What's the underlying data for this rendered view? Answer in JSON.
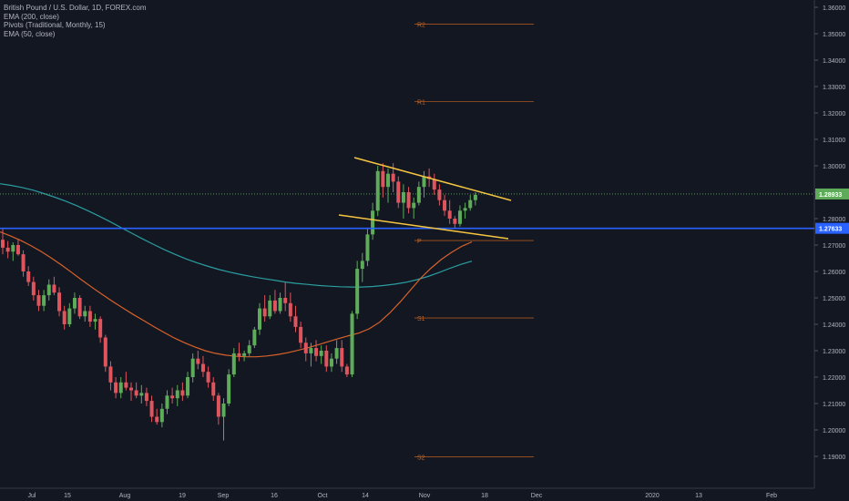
{
  "chart_data": {
    "type": "candlestick",
    "title": "British Pound / U.S. Dollar, 1D, FOREX.com",
    "indicators": [
      "EMA (200, close)",
      "Pivots (Traditional, Monthly, 15)",
      "EMA (50, close)"
    ],
    "x_ticks": [
      "Jul",
      "15",
      "Aug",
      "19",
      "Sep",
      "16",
      "Oct",
      "14",
      "Nov",
      "18",
      "Dec",
      "2020",
      "13",
      "Feb"
    ],
    "y_ticks": [
      "1.36000",
      "1.35000",
      "1.34000",
      "1.33000",
      "1.32000",
      "1.31000",
      "1.30000",
      "1.29000",
      "1.28000",
      "1.27000",
      "1.26000",
      "1.25000",
      "1.24000",
      "1.23000",
      "1.22000",
      "1.21000",
      "1.20000",
      "1.19000"
    ],
    "ylim": [
      1.1838,
      1.3623
    ],
    "last_price": "1.28933",
    "horizontal_level": "1.27633",
    "pivots": [
      {
        "label": "R2",
        "value": 1.3536
      },
      {
        "label": "R1",
        "value": 1.3243
      },
      {
        "label": "P",
        "value": 1.2717
      },
      {
        "label": "S1",
        "value": 1.2424
      },
      {
        "label": "S2",
        "value": 1.1898
      }
    ],
    "candles": [
      [
        1.272,
        1.276,
        1.2665,
        1.269
      ],
      [
        1.269,
        1.2715,
        1.265,
        1.2675
      ],
      [
        1.2675,
        1.271,
        1.264,
        1.27
      ],
      [
        1.27,
        1.272,
        1.266,
        1.2665
      ],
      [
        1.2665,
        1.268,
        1.258,
        1.26
      ],
      [
        1.26,
        1.262,
        1.2545,
        1.256
      ],
      [
        1.256,
        1.258,
        1.249,
        1.251
      ],
      [
        1.251,
        1.253,
        1.245,
        1.247
      ],
      [
        1.247,
        1.253,
        1.245,
        1.251
      ],
      [
        1.251,
        1.257,
        1.249,
        1.255
      ],
      [
        1.255,
        1.258,
        1.251,
        1.252
      ],
      [
        1.252,
        1.254,
        1.243,
        1.245
      ],
      [
        1.245,
        1.247,
        1.238,
        1.24
      ],
      [
        1.24,
        1.248,
        1.239,
        1.246
      ],
      [
        1.246,
        1.252,
        1.244,
        1.25
      ],
      [
        1.25,
        1.251,
        1.242,
        1.243
      ],
      [
        1.243,
        1.247,
        1.241,
        1.245
      ],
      [
        1.245,
        1.247,
        1.239,
        1.241
      ],
      [
        1.241,
        1.244,
        1.238,
        1.242
      ],
      [
        1.242,
        1.243,
        1.233,
        1.235
      ],
      [
        1.235,
        1.236,
        1.222,
        1.224
      ],
      [
        1.224,
        1.226,
        1.215,
        1.218
      ],
      [
        1.218,
        1.22,
        1.212,
        1.214
      ],
      [
        1.214,
        1.22,
        1.212,
        1.218
      ],
      [
        1.218,
        1.222,
        1.215,
        1.216
      ],
      [
        1.216,
        1.218,
        1.211,
        1.215
      ],
      [
        1.215,
        1.218,
        1.212,
        1.213
      ],
      [
        1.213,
        1.217,
        1.21,
        1.214
      ],
      [
        1.214,
        1.216,
        1.209,
        1.211
      ],
      [
        1.211,
        1.213,
        1.203,
        1.205
      ],
      [
        1.205,
        1.208,
        1.202,
        1.203
      ],
      [
        1.203,
        1.21,
        1.201,
        1.208
      ],
      [
        1.208,
        1.215,
        1.206,
        1.213
      ],
      [
        1.213,
        1.216,
        1.21,
        1.212
      ],
      [
        1.212,
        1.217,
        1.209,
        1.215
      ],
      [
        1.215,
        1.218,
        1.211,
        1.213
      ],
      [
        1.213,
        1.222,
        1.212,
        1.22
      ],
      [
        1.22,
        1.229,
        1.218,
        1.227
      ],
      [
        1.227,
        1.23,
        1.223,
        1.225
      ],
      [
        1.225,
        1.228,
        1.22,
        1.222
      ],
      [
        1.222,
        1.224,
        1.216,
        1.218
      ],
      [
        1.218,
        1.22,
        1.211,
        1.213
      ],
      [
        1.213,
        1.214,
        1.202,
        1.205
      ],
      [
        1.205,
        1.212,
        1.196,
        1.21
      ],
      [
        1.21,
        1.223,
        1.209,
        1.221
      ],
      [
        1.221,
        1.231,
        1.22,
        1.229
      ],
      [
        1.229,
        1.233,
        1.226,
        1.228
      ],
      [
        1.228,
        1.23,
        1.226,
        1.229
      ],
      [
        1.229,
        1.234,
        1.228,
        1.232
      ],
      [
        1.232,
        1.239,
        1.231,
        1.238
      ],
      [
        1.238,
        1.248,
        1.236,
        1.246
      ],
      [
        1.246,
        1.251,
        1.241,
        1.243
      ],
      [
        1.243,
        1.251,
        1.242,
        1.249
      ],
      [
        1.249,
        1.253,
        1.244,
        1.245
      ],
      [
        1.245,
        1.252,
        1.244,
        1.25
      ],
      [
        1.25,
        1.256,
        1.245,
        1.248
      ],
      [
        1.248,
        1.252,
        1.241,
        1.243
      ],
      [
        1.243,
        1.247,
        1.237,
        1.239
      ],
      [
        1.239,
        1.241,
        1.231,
        1.233
      ],
      [
        1.233,
        1.235,
        1.226,
        1.229
      ],
      [
        1.229,
        1.233,
        1.224,
        1.231
      ],
      [
        1.231,
        1.234,
        1.226,
        1.228
      ],
      [
        1.228,
        1.232,
        1.225,
        1.23
      ],
      [
        1.23,
        1.232,
        1.222,
        1.224
      ],
      [
        1.224,
        1.229,
        1.222,
        1.227
      ],
      [
        1.227,
        1.234,
        1.225,
        1.231
      ],
      [
        1.231,
        1.234,
        1.222,
        1.224
      ],
      [
        1.224,
        1.225,
        1.22,
        1.221
      ],
      [
        1.221,
        1.245,
        1.22,
        1.244
      ],
      [
        1.244,
        1.264,
        1.242,
        1.261
      ],
      [
        1.261,
        1.267,
        1.256,
        1.264
      ],
      [
        1.264,
        1.276,
        1.262,
        1.274
      ],
      [
        1.274,
        1.286,
        1.272,
        1.283
      ],
      [
        1.283,
        1.3,
        1.281,
        1.298
      ],
      [
        1.298,
        1.301,
        1.288,
        1.292
      ],
      [
        1.292,
        1.299,
        1.286,
        1.297
      ],
      [
        1.297,
        1.301,
        1.29,
        1.294
      ],
      [
        1.294,
        1.296,
        1.284,
        1.286
      ],
      [
        1.286,
        1.293,
        1.28,
        1.29
      ],
      [
        1.29,
        1.292,
        1.282,
        1.284
      ],
      [
        1.284,
        1.288,
        1.28,
        1.286
      ],
      [
        1.286,
        1.294,
        1.285,
        1.292
      ],
      [
        1.292,
        1.298,
        1.288,
        1.296
      ],
      [
        1.296,
        1.299,
        1.292,
        1.295
      ],
      [
        1.295,
        1.297,
        1.289,
        1.291
      ],
      [
        1.291,
        1.293,
        1.285,
        1.287
      ],
      [
        1.287,
        1.289,
        1.281,
        1.283
      ],
      [
        1.283,
        1.287,
        1.278,
        1.28
      ],
      [
        1.28,
        1.281,
        1.276,
        1.278
      ],
      [
        1.278,
        1.285,
        1.277,
        1.283
      ],
      [
        1.283,
        1.286,
        1.28,
        1.284
      ],
      [
        1.284,
        1.289,
        1.283,
        1.287
      ],
      [
        1.287,
        1.29,
        1.285,
        1.289
      ]
    ],
    "ema200": [
      1.2932,
      1.2926,
      1.2918,
      1.2908,
      1.2895,
      1.2881,
      1.2866,
      1.2849,
      1.283,
      1.281,
      1.2789,
      1.2767,
      1.2745,
      1.2723,
      1.2702,
      1.2682,
      1.2664,
      1.2647,
      1.2632,
      1.2619,
      1.2607,
      1.2597,
      1.2588,
      1.258,
      1.2573,
      1.2567,
      1.256,
      1.2555,
      1.2551,
      1.2547,
      1.2544,
      1.2542,
      1.2541,
      1.2541,
      1.2543,
      1.2547,
      1.2552,
      1.2559,
      1.2569,
      1.2581,
      1.2596,
      1.2612,
      1.2627,
      1.2639
    ],
    "ema50": [
      1.275,
      1.2735,
      1.2718,
      1.2698,
      1.2676,
      1.2651,
      1.2624,
      1.2596,
      1.2567,
      1.2539,
      1.2512,
      1.2486,
      1.2461,
      1.2437,
      1.2414,
      1.2391,
      1.2369,
      1.2348,
      1.233,
      1.2314,
      1.23,
      1.229,
      1.2283,
      1.2279,
      1.2277,
      1.2277,
      1.228,
      1.2285,
      1.2292,
      1.2301,
      1.2311,
      1.2322,
      1.2334,
      1.2346,
      1.2357,
      1.2367,
      1.2383,
      1.2408,
      1.2443,
      1.2484,
      1.2529,
      1.2574,
      1.2612,
      1.2645,
      1.2672,
      1.2695,
      1.2712
    ]
  }
}
